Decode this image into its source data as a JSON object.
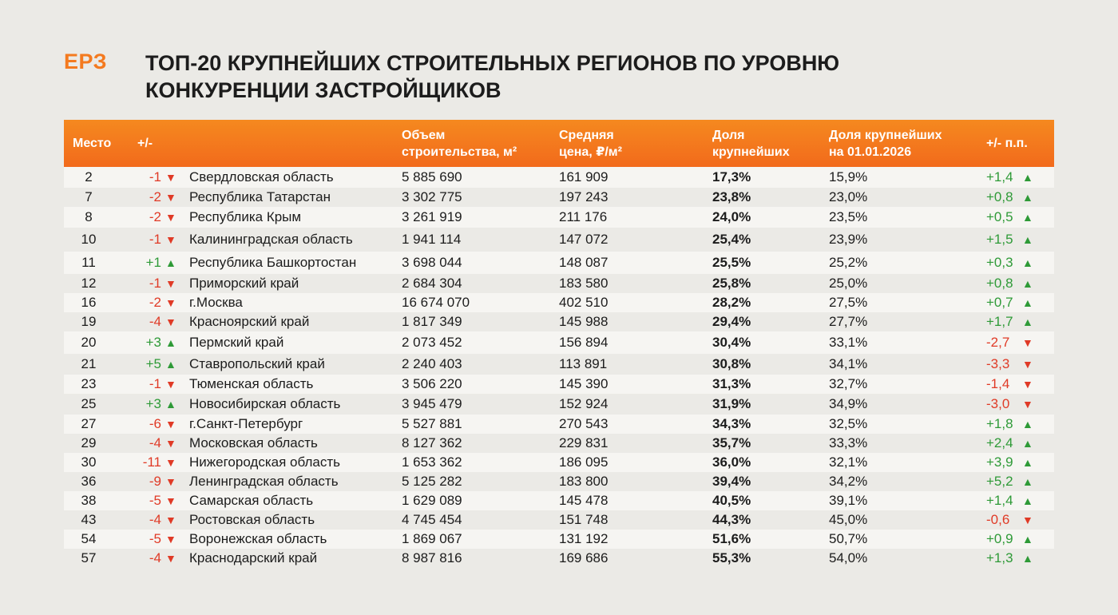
{
  "logo": "ЕРЗ",
  "title_line1": "ТОП-20 КРУПНЕЙШИХ СТРОИТЕЛЬНЫХ РЕГИОНОВ ПО УРОВНЮ",
  "title_line2": "КОНКУРЕНЦИИ ЗАСТРОЙЩИКОВ",
  "colors": {
    "accent": "#f47a1f",
    "negative": "#e03a26",
    "positive": "#2e9a37",
    "background": "#ebeae6"
  },
  "icons": {
    "up": "triangle-up-icon",
    "down": "triangle-down-icon"
  },
  "chart_data": {
    "type": "table",
    "columns": [
      {
        "key": "place",
        "line1": "Место",
        "line2": ""
      },
      {
        "key": "change",
        "line1": "+/-",
        "line2": ""
      },
      {
        "key": "region",
        "line1": "",
        "line2": ""
      },
      {
        "key": "volume",
        "line1": "Объем",
        "line2": "строительства, м²"
      },
      {
        "key": "price",
        "line1": "Средняя",
        "line2": "цена, ₽/м²"
      },
      {
        "key": "share",
        "line1": "Доля",
        "line2": "крупнейших"
      },
      {
        "key": "share_prev",
        "line1": "Доля крупнейших",
        "line2": "на 01.01.2026"
      },
      {
        "key": "pp",
        "line1": "+/- п.п.",
        "line2": ""
      }
    ],
    "rows": [
      {
        "place": "2",
        "change": "-1",
        "change_dir": "down",
        "region": "Свердловская область",
        "volume": "5 885 690",
        "price": "161 909",
        "share": "17,3%",
        "share_prev": "15,9%",
        "pp": "+1,4",
        "pp_dir": "up"
      },
      {
        "place": "7",
        "change": "-2",
        "change_dir": "down",
        "region": "Республика Татарстан",
        "volume": "3 302 775",
        "price": "197 243",
        "share": "23,8%",
        "share_prev": "23,0%",
        "pp": "+0,8",
        "pp_dir": "up"
      },
      {
        "place": "8",
        "change": "-2",
        "change_dir": "down",
        "region": "Республика Крым",
        "volume": "3 261 919",
        "price": "211 176",
        "share": "24,0%",
        "share_prev": "23,5%",
        "pp": "+0,5",
        "pp_dir": "up"
      },
      {
        "place": "10",
        "change": "-1",
        "change_dir": "down",
        "region": "Калининградская область",
        "volume": "1 941 114",
        "price": "147 072",
        "share": "25,4%",
        "share_prev": "23,9%",
        "pp": "+1,5",
        "pp_dir": "up"
      },
      {
        "place": "11",
        "change": "+1",
        "change_dir": "up",
        "region": "Республика Башкортостан",
        "volume": "3 698 044",
        "price": "148 087",
        "share": "25,5%",
        "share_prev": "25,2%",
        "pp": "+0,3",
        "pp_dir": "up"
      },
      {
        "place": "12",
        "change": "-1",
        "change_dir": "down",
        "region": "Приморский край",
        "volume": "2 684 304",
        "price": "183 580",
        "share": "25,8%",
        "share_prev": "25,0%",
        "pp": "+0,8",
        "pp_dir": "up"
      },
      {
        "place": "16",
        "change": "-2",
        "change_dir": "down",
        "region": "г.Москва",
        "volume": "16 674 070",
        "price": "402 510",
        "share": "28,2%",
        "share_prev": "27,5%",
        "pp": "+0,7",
        "pp_dir": "up"
      },
      {
        "place": "19",
        "change": "-4",
        "change_dir": "down",
        "region": "Красноярский край",
        "volume": "1 817 349",
        "price": "145 988",
        "share": "29,4%",
        "share_prev": "27,7%",
        "pp": "+1,7",
        "pp_dir": "up"
      },
      {
        "place": "20",
        "change": "+3",
        "change_dir": "up",
        "region": "Пермский край",
        "volume": "2 073 452",
        "price": "156 894",
        "share": "30,4%",
        "share_prev": "33,1%",
        "pp": "-2,7",
        "pp_dir": "down"
      },
      {
        "place": "21",
        "change": "+5",
        "change_dir": "up",
        "region": "Ставропольский край",
        "volume": "2 240 403",
        "price": "113 891",
        "share": "30,8%",
        "share_prev": "34,1%",
        "pp": "-3,3",
        "pp_dir": "down"
      },
      {
        "place": "23",
        "change": "-1",
        "change_dir": "down",
        "region": "Тюменская область",
        "volume": "3 506 220",
        "price": "145 390",
        "share": "31,3%",
        "share_prev": "32,7%",
        "pp": "-1,4",
        "pp_dir": "down"
      },
      {
        "place": "25",
        "change": "+3",
        "change_dir": "up",
        "region": "Новосибирская область",
        "volume": "3 945 479",
        "price": "152 924",
        "share": "31,9%",
        "share_prev": "34,9%",
        "pp": "-3,0",
        "pp_dir": "down"
      },
      {
        "place": "27",
        "change": "-6",
        "change_dir": "down",
        "region": "г.Санкт-Петербург",
        "volume": "5 527 881",
        "price": "270 543",
        "share": "34,3%",
        "share_prev": "32,5%",
        "pp": "+1,8",
        "pp_dir": "up"
      },
      {
        "place": "29",
        "change": "-4",
        "change_dir": "down",
        "region": "Московская область",
        "volume": "8 127 362",
        "price": "229 831",
        "share": "35,7%",
        "share_prev": "33,3%",
        "pp": "+2,4",
        "pp_dir": "up"
      },
      {
        "place": "30",
        "change": "-11",
        "change_dir": "down",
        "region": "Нижегородская область",
        "volume": "1 653 362",
        "price": "186 095",
        "share": "36,0%",
        "share_prev": "32,1%",
        "pp": "+3,9",
        "pp_dir": "up"
      },
      {
        "place": "36",
        "change": "-9",
        "change_dir": "down",
        "region": "Ленинградская область",
        "volume": "5 125 282",
        "price": "183 800",
        "share": "39,4%",
        "share_prev": "34,2%",
        "pp": "+5,2",
        "pp_dir": "up"
      },
      {
        "place": "38",
        "change": "-5",
        "change_dir": "down",
        "region": "Самарская область",
        "volume": "1 629 089",
        "price": "145 478",
        "share": "40,5%",
        "share_prev": "39,1%",
        "pp": "+1,4",
        "pp_dir": "up"
      },
      {
        "place": "43",
        "change": "-4",
        "change_dir": "down",
        "region": "Ростовская область",
        "volume": "4 745 454",
        "price": "151 748",
        "share": "44,3%",
        "share_prev": "45,0%",
        "pp": "-0,6",
        "pp_dir": "down"
      },
      {
        "place": "54",
        "change": "-5",
        "change_dir": "down",
        "region": "Воронежская область",
        "volume": "1 869 067",
        "price": "131 192",
        "share": "51,6%",
        "share_prev": "50,7%",
        "pp": "+0,9",
        "pp_dir": "up"
      },
      {
        "place": "57",
        "change": "-4",
        "change_dir": "down",
        "region": "Краснодарский край",
        "volume": "8 987 816",
        "price": "169 686",
        "share": "55,3%",
        "share_prev": "54,0%",
        "pp": "+1,3",
        "pp_dir": "up"
      }
    ]
  }
}
